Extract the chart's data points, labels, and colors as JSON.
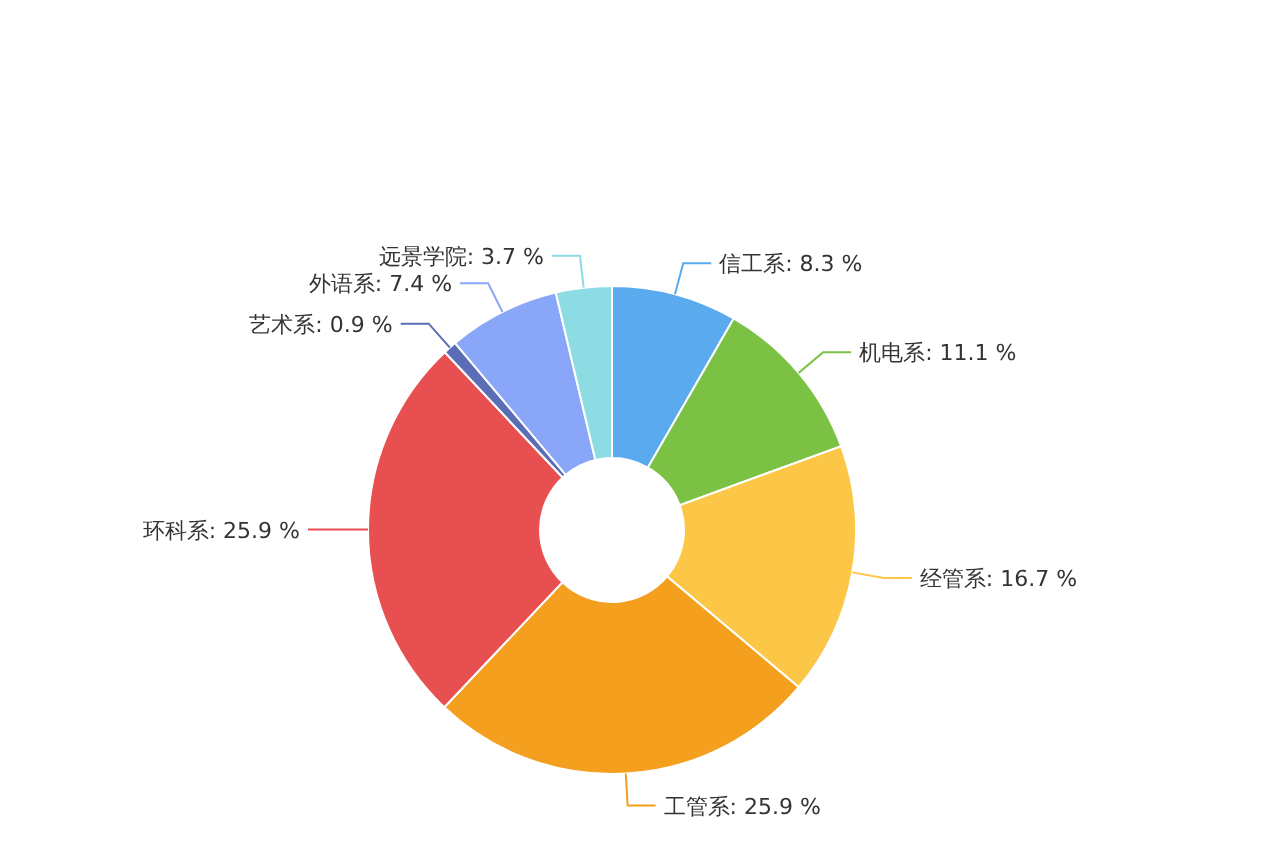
{
  "chart_data": {
    "type": "donut",
    "categories": [
      "信工系",
      "机电系",
      "经管系",
      "工管系",
      "环科系",
      "艺术系",
      "外语系",
      "远景学院"
    ],
    "values": [
      8.3,
      11.1,
      16.7,
      25.9,
      25.9,
      0.9,
      7.4,
      3.7
    ],
    "value_labels": [
      "8.3 %",
      "11.1 %",
      "16.7 %",
      "25.9 %",
      "25.9 %",
      "0.9 %",
      "7.4 %",
      "3.7 %"
    ],
    "colors": [
      "#5aaaee",
      "#7bc244",
      "#fcc647",
      "#f59f1e",
      "#e84f50",
      "#5a6db5",
      "#89a6f8",
      "#8ddbe3"
    ]
  }
}
